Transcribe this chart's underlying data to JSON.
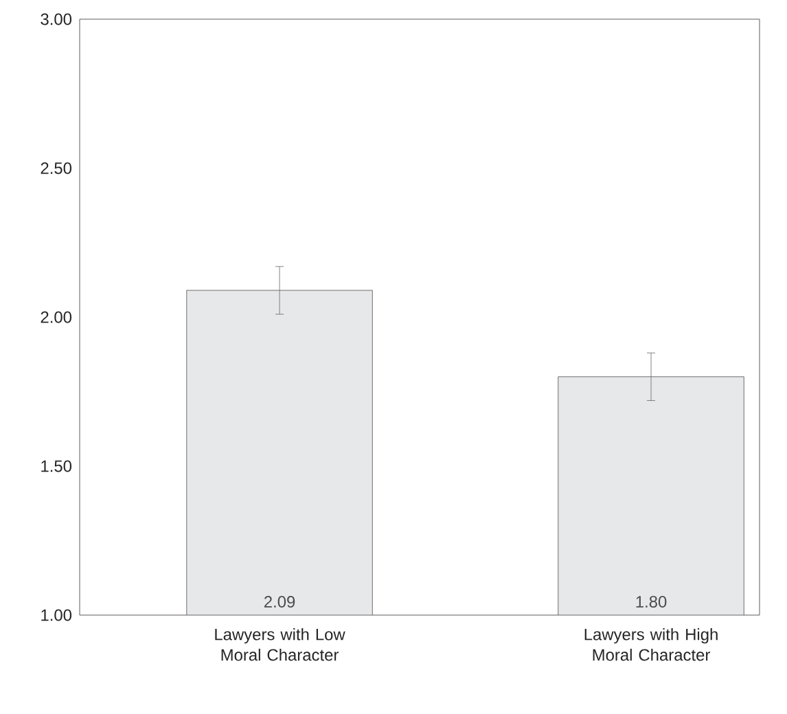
{
  "chart_data": {
    "type": "bar",
    "categories": [
      "Lawyers with Low Moral Character",
      "Lawyers with High Moral Character"
    ],
    "values": [
      2.09,
      1.8
    ],
    "errors": [
      0.08,
      0.08
    ],
    "value_labels": [
      "2.09",
      "1.80"
    ],
    "color": "#e7e8ea",
    "ylim": [
      1,
      3
    ],
    "yticks": [
      {
        "value": 1,
        "label": "1.00"
      },
      {
        "value": 1.5,
        "label": "1.50"
      },
      {
        "value": 2,
        "label": "2.00"
      },
      {
        "value": 2.5,
        "label": "2.50"
      },
      {
        "value": 3,
        "label": "3.00"
      }
    ],
    "grid": false
  }
}
